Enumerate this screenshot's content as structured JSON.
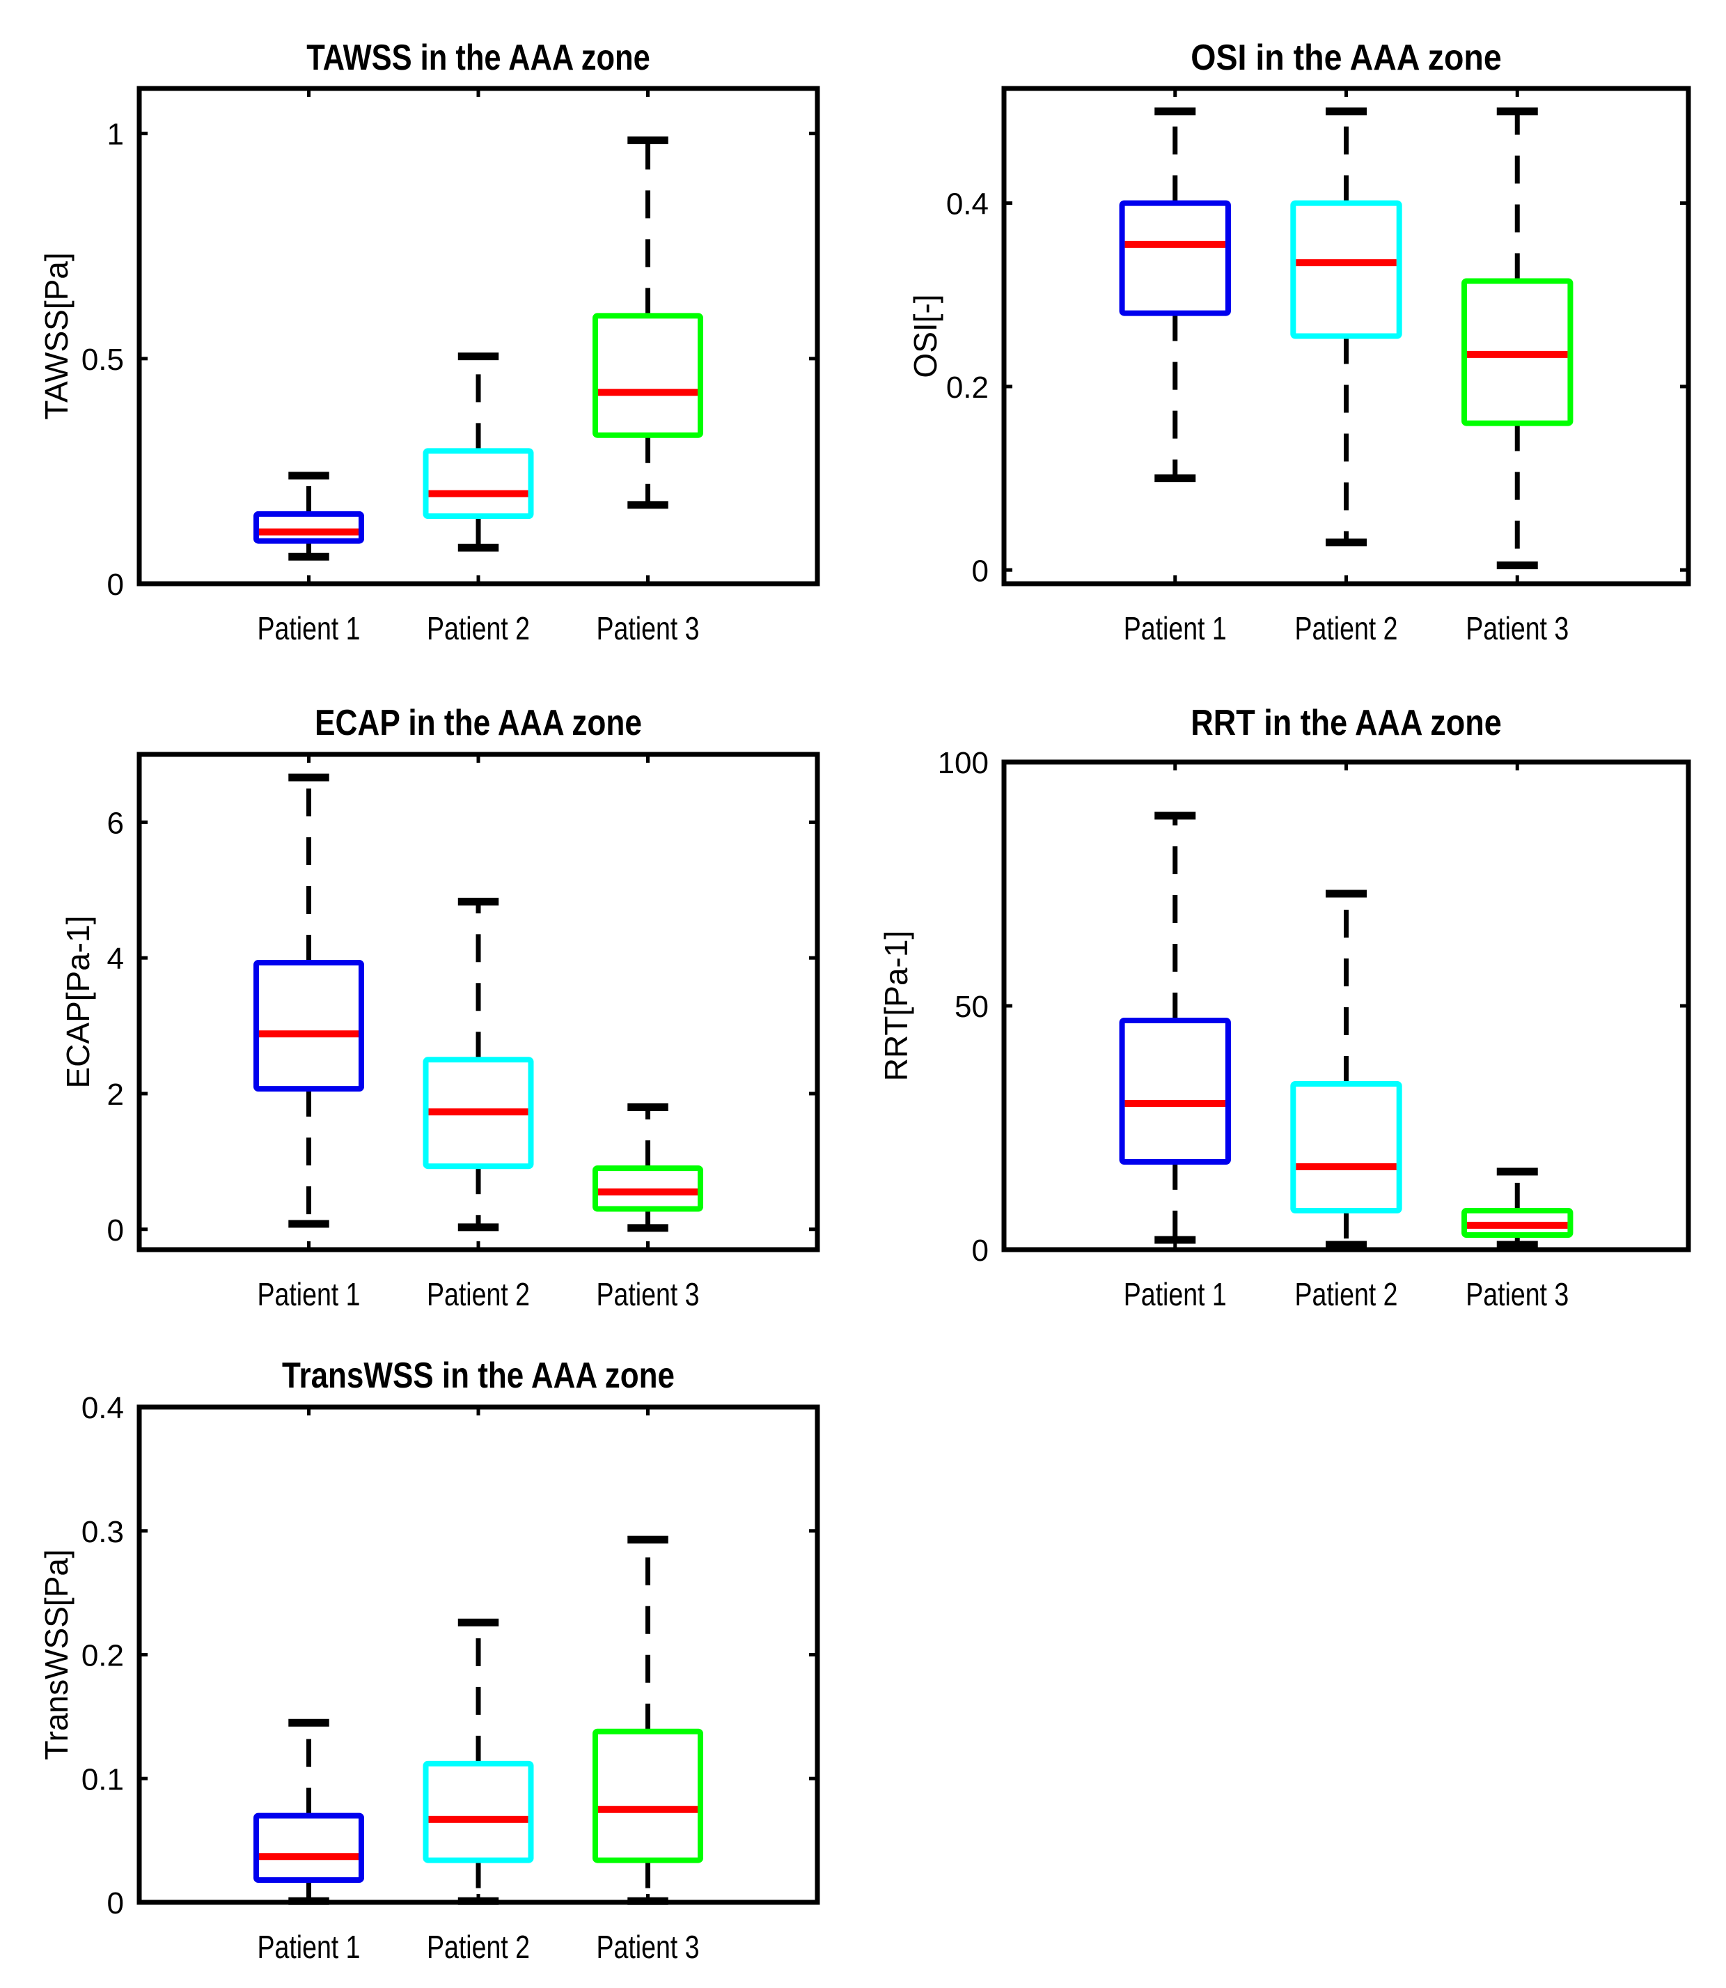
{
  "colors": {
    "patient_1": "#0000ee",
    "patient_2": "#00ffff",
    "patient_3": "#00ff00",
    "median": "#ff0000",
    "whisker": "#000000"
  },
  "chart_data": [
    {
      "id": "tawss",
      "type": "box",
      "title": "TAWSS in the AAA zone",
      "ylabel": "TAWSS[Pa]",
      "xlabel": "",
      "ylim": [
        0,
        1.1
      ],
      "yticks": [
        0,
        0.5,
        1
      ],
      "ytick_labels": [
        "0",
        "0.5",
        "1"
      ],
      "categories": [
        "Patient 1",
        "Patient 2",
        "Patient 3"
      ],
      "boxes": [
        {
          "name": "Patient 1",
          "whisker_low": 0.06,
          "q1": 0.095,
          "median": 0.115,
          "q3": 0.155,
          "whisker_high": 0.24
        },
        {
          "name": "Patient 2",
          "whisker_low": 0.08,
          "q1": 0.15,
          "median": 0.2,
          "q3": 0.295,
          "whisker_high": 0.505
        },
        {
          "name": "Patient 3",
          "whisker_low": 0.175,
          "q1": 0.33,
          "median": 0.425,
          "q3": 0.595,
          "whisker_high": 0.985
        }
      ]
    },
    {
      "id": "osi",
      "type": "box",
      "title": "OSI in the AAA zone",
      "ylabel": "OSI[-]",
      "xlabel": "",
      "ylim": [
        -0.015,
        0.525
      ],
      "yticks": [
        0,
        0.2,
        0.4
      ],
      "ytick_labels": [
        "0",
        "0.2",
        "0.4"
      ],
      "categories": [
        "Patient 1",
        "Patient 2",
        "Patient 3"
      ],
      "boxes": [
        {
          "name": "Patient 1",
          "whisker_low": 0.1,
          "q1": 0.28,
          "median": 0.355,
          "q3": 0.4,
          "whisker_high": 0.5
        },
        {
          "name": "Patient 2",
          "whisker_low": 0.03,
          "q1": 0.255,
          "median": 0.335,
          "q3": 0.4,
          "whisker_high": 0.5
        },
        {
          "name": "Patient 3",
          "whisker_low": 0.005,
          "q1": 0.16,
          "median": 0.235,
          "q3": 0.315,
          "whisker_high": 0.5
        }
      ]
    },
    {
      "id": "ecap",
      "type": "box",
      "title": "ECAP in the AAA zone",
      "ylabel": "ECAP[Pa-1]",
      "xlabel": "",
      "ylim": [
        -0.3,
        7
      ],
      "yticks": [
        0,
        2,
        4,
        6
      ],
      "ytick_labels": [
        "0",
        "2",
        "4",
        "6"
      ],
      "categories": [
        "Patient 1",
        "Patient 2",
        "Patient 3"
      ],
      "boxes": [
        {
          "name": "Patient 1",
          "whisker_low": 0.08,
          "q1": 2.07,
          "median": 2.88,
          "q3": 3.93,
          "whisker_high": 6.66
        },
        {
          "name": "Patient 2",
          "whisker_low": 0.03,
          "q1": 0.93,
          "median": 1.73,
          "q3": 2.5,
          "whisker_high": 4.83
        },
        {
          "name": "Patient 3",
          "whisker_low": 0.02,
          "q1": 0.3,
          "median": 0.55,
          "q3": 0.9,
          "whisker_high": 1.8
        }
      ]
    },
    {
      "id": "rrt",
      "type": "box",
      "title": "RRT in the AAA zone",
      "ylabel": "RRT[Pa-1]",
      "xlabel": "",
      "ylim": [
        0,
        100
      ],
      "yticks": [
        0,
        50,
        100
      ],
      "ytick_labels": [
        "0",
        "50",
        "100"
      ],
      "categories": [
        "Patient 1",
        "Patient 2",
        "Patient 3"
      ],
      "boxes": [
        {
          "name": "Patient 1",
          "whisker_low": 2,
          "q1": 18,
          "median": 30,
          "q3": 47,
          "whisker_high": 89
        },
        {
          "name": "Patient 2",
          "whisker_low": 1,
          "q1": 8,
          "median": 17,
          "q3": 34,
          "whisker_high": 73
        },
        {
          "name": "Patient 3",
          "whisker_low": 1,
          "q1": 3,
          "median": 5,
          "q3": 8,
          "whisker_high": 16
        }
      ]
    },
    {
      "id": "transwss",
      "type": "box",
      "title": "TransWSS in the AAA zone",
      "ylabel": "TransWSS[Pa]",
      "xlabel": "",
      "ylim": [
        0,
        0.4
      ],
      "yticks": [
        0,
        0.1,
        0.2,
        0.3,
        0.4
      ],
      "ytick_labels": [
        "0",
        "0.1",
        "0.2",
        "0.3",
        "0.4"
      ],
      "categories": [
        "Patient 1",
        "Patient 2",
        "Patient 3"
      ],
      "boxes": [
        {
          "name": "Patient 1",
          "whisker_low": 0.001,
          "q1": 0.018,
          "median": 0.037,
          "q3": 0.07,
          "whisker_high": 0.145
        },
        {
          "name": "Patient 2",
          "whisker_low": 0.001,
          "q1": 0.034,
          "median": 0.067,
          "q3": 0.112,
          "whisker_high": 0.226
        },
        {
          "name": "Patient 3",
          "whisker_low": 0.001,
          "q1": 0.034,
          "median": 0.075,
          "q3": 0.138,
          "whisker_high": 0.293
        }
      ]
    }
  ]
}
